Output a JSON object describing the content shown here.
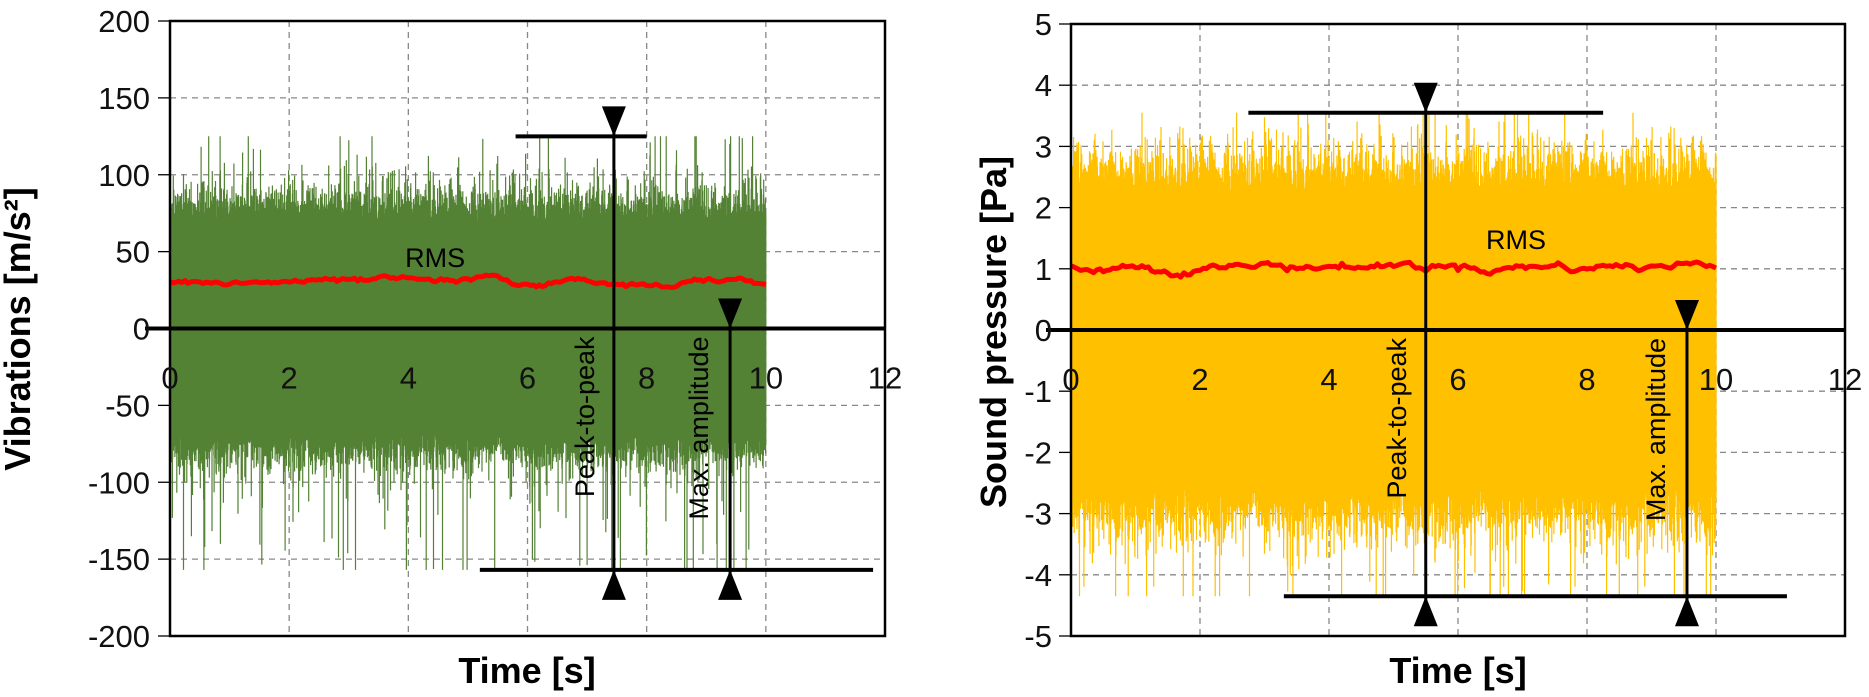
{
  "chart_data": [
    {
      "type": "line",
      "xlabel": "Time [s]",
      "ylabel": "Vibrations [m/s²]",
      "xlim": [
        0,
        12
      ],
      "ylim": [
        -200,
        200
      ],
      "xticks": [
        0,
        2,
        4,
        6,
        8,
        10,
        12
      ],
      "yticks": [
        200,
        150,
        100,
        50,
        0,
        -50,
        -100,
        -150,
        -200
      ],
      "grid": true,
      "signal": {
        "t_range": [
          0,
          10
        ],
        "color": "#548235",
        "typical_envelope": [
          -80,
          80
        ],
        "max": 125,
        "min": -157
      },
      "rms": {
        "label": "RMS",
        "value": 30,
        "color": "#FF0000"
      },
      "annotations": {
        "peak_to_peak": {
          "label": "Peak-to-peak",
          "from": -157,
          "to": 125,
          "t": 7.45
        },
        "max_amplitude": {
          "label": "Max. amplitude",
          "from": 0,
          "to": -157,
          "t": 9.4
        },
        "top_line": {
          "value": 125,
          "t": [
            5.8,
            8.0
          ]
        },
        "bottom_line": {
          "value": -157,
          "t": [
            5.2,
            11.8
          ]
        }
      }
    },
    {
      "type": "line",
      "xlabel": "Time [s]",
      "ylabel": "Sound pressure [Pa]",
      "xlim": [
        0,
        12
      ],
      "ylim": [
        -5,
        5
      ],
      "xticks": [
        0,
        2,
        4,
        6,
        8,
        10,
        12
      ],
      "yticks": [
        5,
        4,
        3,
        2,
        1,
        0,
        -1,
        -2,
        -3,
        -4,
        -5
      ],
      "grid": true,
      "signal": {
        "t_range": [
          0,
          10
        ],
        "color": "#FFC000",
        "typical_envelope": [
          -3,
          2.6
        ],
        "max": 3.55,
        "min": -4.35
      },
      "rms": {
        "label": "RMS",
        "value": 1.05,
        "color": "#FF0000"
      },
      "annotations": {
        "peak_to_peak": {
          "label": "Peak-to-peak",
          "from": -4.35,
          "to": 3.55,
          "t": 5.5
        },
        "max_amplitude": {
          "label": "Max. amplitude",
          "from": 0,
          "to": -4.35,
          "t": 9.55
        },
        "top_line": {
          "value": 3.55,
          "t": [
            2.75,
            8.25
          ]
        },
        "bottom_line": {
          "value": -4.35,
          "t": [
            3.3,
            11.1
          ]
        }
      }
    }
  ]
}
